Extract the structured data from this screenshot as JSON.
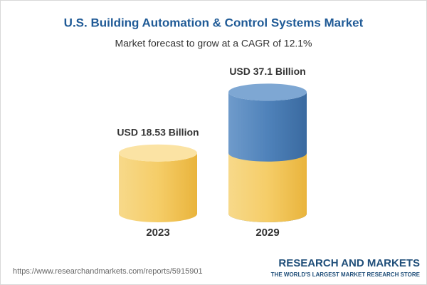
{
  "chart_data": {
    "type": "cylinder",
    "title": "U.S. Building Automation & Control Systems Market",
    "subtitle": "Market forecast to grow at a CAGR of 12.1%",
    "categories": [
      "2023",
      "2029"
    ],
    "values": [
      18.53,
      37.1
    ],
    "value_labels": [
      "USD 18.53 Billion",
      "USD 37.1 Billion"
    ],
    "colors": [
      "#f2c553",
      "#4a7db5"
    ]
  },
  "footer": {
    "url": "https://www.researchandmarkets.com/reports/5915901",
    "brand": "RESEARCH AND MARKETS",
    "tagline": "THE WORLD'S LARGEST MARKET RESEARCH STORE"
  }
}
